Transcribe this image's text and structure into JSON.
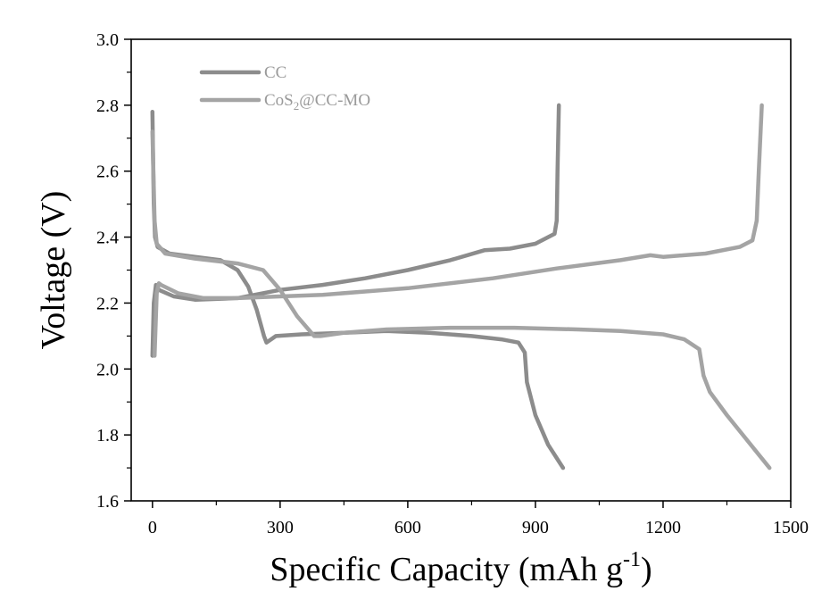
{
  "chart_data": {
    "type": "line",
    "title": "",
    "xlabel": "Specific Capacity (mAh g",
    "xlabel_sup": "-1",
    "xlabel_close": ")",
    "ylabel": "Voltage (V)",
    "xlim": [
      -50,
      1500
    ],
    "ylim": [
      1.6,
      3.0
    ],
    "xticks": [
      0,
      300,
      600,
      900,
      1200,
      1500
    ],
    "yticks": [
      1.6,
      1.8,
      2.0,
      2.2,
      2.4,
      2.6,
      2.8,
      3.0
    ],
    "ytick_labels": [
      "1.6",
      "1.8",
      "2.0",
      "2.2",
      "2.4",
      "2.6",
      "2.8",
      "3.0"
    ],
    "grid": false,
    "legend_position": "top-left",
    "series": [
      {
        "name": "CC",
        "legend_main": "CC",
        "color": "#8c8c8c",
        "discharge": [
          [
            0,
            2.78
          ],
          [
            3,
            2.5
          ],
          [
            6,
            2.4
          ],
          [
            12,
            2.37
          ],
          [
            40,
            2.35
          ],
          [
            100,
            2.34
          ],
          [
            160,
            2.33
          ],
          [
            200,
            2.3
          ],
          [
            225,
            2.25
          ],
          [
            245,
            2.18
          ],
          [
            262,
            2.1
          ],
          [
            268,
            2.08
          ],
          [
            290,
            2.1
          ],
          [
            350,
            2.105
          ],
          [
            450,
            2.11
          ],
          [
            550,
            2.115
          ],
          [
            650,
            2.11
          ],
          [
            750,
            2.1
          ],
          [
            820,
            2.09
          ],
          [
            860,
            2.08
          ],
          [
            875,
            2.05
          ],
          [
            880,
            1.96
          ],
          [
            900,
            1.86
          ],
          [
            930,
            1.77
          ],
          [
            965,
            1.7
          ]
        ],
        "charge": [
          [
            0,
            2.04
          ],
          [
            3,
            2.2
          ],
          [
            8,
            2.255
          ],
          [
            15,
            2.24
          ],
          [
            50,
            2.22
          ],
          [
            100,
            2.21
          ],
          [
            200,
            2.215
          ],
          [
            300,
            2.24
          ],
          [
            400,
            2.255
          ],
          [
            500,
            2.275
          ],
          [
            600,
            2.3
          ],
          [
            700,
            2.33
          ],
          [
            780,
            2.36
          ],
          [
            840,
            2.365
          ],
          [
            900,
            2.38
          ],
          [
            945,
            2.41
          ],
          [
            950,
            2.45
          ],
          [
            952,
            2.6
          ],
          [
            955,
            2.8
          ]
        ]
      },
      {
        "name": "CoS2@CC-MO",
        "legend_main": "CoS",
        "legend_sub": "2",
        "legend_rest": "@CC-MO",
        "color": "#a4a4a4",
        "discharge": [
          [
            0,
            2.72
          ],
          [
            5,
            2.45
          ],
          [
            10,
            2.38
          ],
          [
            30,
            2.35
          ],
          [
            100,
            2.335
          ],
          [
            200,
            2.32
          ],
          [
            260,
            2.3
          ],
          [
            300,
            2.24
          ],
          [
            340,
            2.16
          ],
          [
            380,
            2.1
          ],
          [
            395,
            2.1
          ],
          [
            450,
            2.11
          ],
          [
            550,
            2.12
          ],
          [
            700,
            2.125
          ],
          [
            850,
            2.125
          ],
          [
            1000,
            2.12
          ],
          [
            1100,
            2.115
          ],
          [
            1200,
            2.105
          ],
          [
            1250,
            2.09
          ],
          [
            1285,
            2.06
          ],
          [
            1295,
            1.98
          ],
          [
            1310,
            1.93
          ],
          [
            1350,
            1.86
          ],
          [
            1400,
            1.78
          ],
          [
            1450,
            1.7
          ]
        ],
        "charge": [
          [
            5,
            2.04
          ],
          [
            10,
            2.23
          ],
          [
            15,
            2.26
          ],
          [
            20,
            2.255
          ],
          [
            60,
            2.23
          ],
          [
            120,
            2.215
          ],
          [
            200,
            2.215
          ],
          [
            300,
            2.22
          ],
          [
            400,
            2.225
          ],
          [
            500,
            2.235
          ],
          [
            600,
            2.245
          ],
          [
            800,
            2.275
          ],
          [
            950,
            2.305
          ],
          [
            1100,
            2.33
          ],
          [
            1170,
            2.345
          ],
          [
            1200,
            2.34
          ],
          [
            1300,
            2.35
          ],
          [
            1380,
            2.37
          ],
          [
            1410,
            2.39
          ],
          [
            1420,
            2.45
          ],
          [
            1425,
            2.6
          ],
          [
            1432,
            2.8
          ]
        ]
      }
    ]
  }
}
